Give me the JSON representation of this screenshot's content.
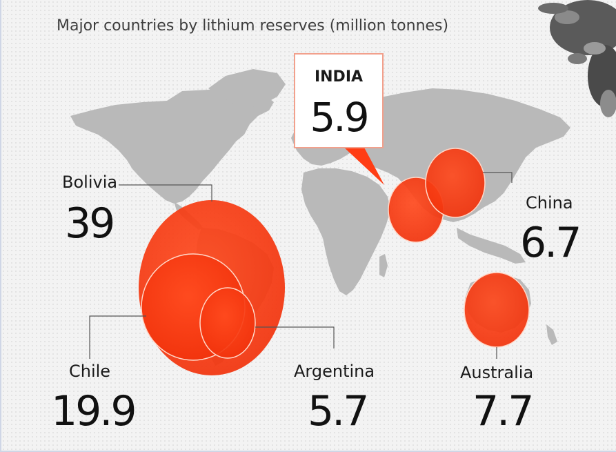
{
  "title": "Major countries by lithium reserves (million tonnes)",
  "colors": {
    "bubble": "#ff3d14",
    "map": "#b9b9b9",
    "text": "#111111",
    "callout_border": "#f2a08c"
  },
  "chart_data": {
    "type": "bubble-map",
    "title": "Major countries by lithium reserves (million tonnes)",
    "unit": "million tonnes",
    "points": [
      {
        "country": "Bolivia",
        "value": "39",
        "v": 39
      },
      {
        "country": "Chile",
        "value": "19.9",
        "v": 19.9
      },
      {
        "country": "Argentina",
        "value": "5.7",
        "v": 5.7
      },
      {
        "country": "INDIA",
        "value": "5.9",
        "v": 5.9
      },
      {
        "country": "China",
        "value": "6.7",
        "v": 6.7
      },
      {
        "country": "Australia",
        "value": "7.7",
        "v": 7.7
      }
    ]
  }
}
